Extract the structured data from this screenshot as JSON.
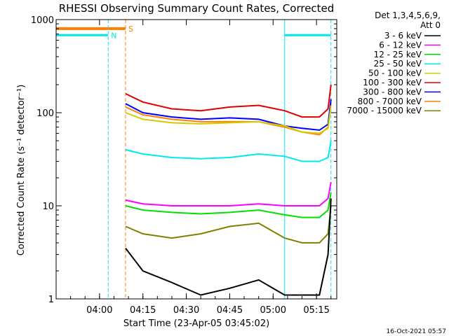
{
  "chart_data": {
    "type": "line",
    "title": "RHESSI Observing Summary Count Rates, Corrected",
    "xlabel": "Start Time (23-Apr-05 03:45:02)",
    "ylabel": "Corrected Count Rate (s⁻¹ detector⁻¹)",
    "yscale": "log",
    "ylim": [
      1,
      1000
    ],
    "xlim": [
      "03:45",
      "05:22"
    ],
    "x_ticks": [
      "04:00",
      "04:15",
      "04:30",
      "04:45",
      "05:00",
      "05:15"
    ],
    "y_ticks": [
      "1",
      "10",
      "100",
      "1000"
    ],
    "footer_timestamp": "16-Oct-2021 05:57",
    "legend": {
      "header_line1": "Det 1,3,4,5,6,9,",
      "header_line2": "Att 0",
      "placement": "top-right",
      "entries": [
        {
          "label": "3 - 6 keV",
          "color": "#000000"
        },
        {
          "label": "6 - 12 keV",
          "color": "#ff00ff"
        },
        {
          "label": "12 - 25 keV",
          "color": "#00e000"
        },
        {
          "label": "25 - 50 keV",
          "color": "#00e8f0"
        },
        {
          "label": "50 - 100 keV",
          "color": "#d8c800"
        },
        {
          "label": "100 - 300 keV",
          "color": "#e00000"
        },
        {
          "label": "300 - 800 keV",
          "color": "#0000ff"
        },
        {
          "label": "800 - 7000 keV",
          "color": "#ff8000"
        },
        {
          "label": "7000 - 15000 keV",
          "color": "#808000"
        }
      ]
    },
    "flags": [
      {
        "label": "N",
        "color": "#00e8f0",
        "segments": [
          [
            "03:45",
            "04:03"
          ],
          [
            "05:04",
            "05:20"
          ]
        ],
        "level": 680
      },
      {
        "label": "S",
        "color": "#ff8000",
        "segments": [
          [
            "03:45",
            "04:09"
          ]
        ],
        "level": 800
      }
    ],
    "markers": [
      {
        "time": "04:03",
        "color": "#00e8f0",
        "style": "dashed"
      },
      {
        "time": "04:09",
        "color": "#ff8000",
        "style": "dashed"
      },
      {
        "time": "05:04",
        "color": "#00e8f0",
        "style": "solid"
      },
      {
        "time": "05:20",
        "color": "#00e8f0",
        "style": "dashed"
      }
    ],
    "series": [
      {
        "label": "3 - 6 keV",
        "color": "#000000",
        "x": [
          "04:09",
          "04:15",
          "04:25",
          "04:35",
          "04:45",
          "04:55",
          "05:04",
          "05:10",
          "05:16",
          "05:19",
          "05:20"
        ],
        "y": [
          3.5,
          2.0,
          1.5,
          1.1,
          1.3,
          1.6,
          1.1,
          1.1,
          1.1,
          3.0,
          12.0
        ]
      },
      {
        "label": "6 - 12 keV",
        "color": "#ff00ff",
        "x": [
          "04:09",
          "04:15",
          "04:25",
          "04:35",
          "04:45",
          "04:55",
          "05:04",
          "05:10",
          "05:16",
          "05:19",
          "05:20"
        ],
        "y": [
          11.5,
          10.5,
          10.0,
          10.0,
          10.0,
          10.5,
          10.0,
          10.0,
          10.0,
          12.0,
          18.0
        ]
      },
      {
        "label": "12 - 25 keV",
        "color": "#00e000",
        "x": [
          "04:09",
          "04:15",
          "04:25",
          "04:35",
          "04:45",
          "04:55",
          "05:04",
          "05:10",
          "05:16",
          "05:19",
          "05:20"
        ],
        "y": [
          10.0,
          9.0,
          8.5,
          8.2,
          8.5,
          9.0,
          8.0,
          7.5,
          7.5,
          9.0,
          14.0
        ]
      },
      {
        "label": "25 - 50 keV",
        "color": "#00e8f0",
        "x": [
          "04:09",
          "04:15",
          "04:25",
          "04:35",
          "04:45",
          "04:55",
          "05:04",
          "05:10",
          "05:16",
          "05:19",
          "05:20"
        ],
        "y": [
          40.0,
          36.0,
          33.0,
          32.0,
          33.0,
          36.0,
          34.0,
          30.0,
          30.0,
          33.0,
          50.0
        ]
      },
      {
        "label": "50 - 100 keV",
        "color": "#d8c800",
        "x": [
          "04:09",
          "04:15",
          "04:25",
          "04:35",
          "04:45",
          "04:55",
          "05:04",
          "05:10",
          "05:16",
          "05:19",
          "05:20"
        ],
        "y": [
          100.0,
          85.0,
          78.0,
          76.0,
          78.0,
          80.0,
          72.0,
          62.0,
          60.0,
          68.0,
          120.0
        ]
      },
      {
        "label": "100 - 300 keV",
        "color": "#e00000",
        "x": [
          "04:09",
          "04:15",
          "04:25",
          "04:35",
          "04:45",
          "04:55",
          "05:04",
          "05:10",
          "05:16",
          "05:19",
          "05:20"
        ],
        "y": [
          160.0,
          130.0,
          110.0,
          105.0,
          115.0,
          120.0,
          105.0,
          90.0,
          90.0,
          110.0,
          200.0
        ]
      },
      {
        "label": "300 - 800 keV",
        "color": "#0000ff",
        "x": [
          "04:09",
          "04:15",
          "04:25",
          "04:35",
          "04:45",
          "04:55",
          "05:04",
          "05:10",
          "05:16",
          "05:19",
          "05:20"
        ],
        "y": [
          125.0,
          100.0,
          90.0,
          85.0,
          88.0,
          85.0,
          72.0,
          68.0,
          65.0,
          75.0,
          140.0
        ]
      },
      {
        "label": "800 - 7000 keV",
        "color": "#ff8000",
        "x": [
          "04:09",
          "04:15",
          "04:25",
          "04:35",
          "04:45",
          "04:55",
          "05:04",
          "05:10",
          "05:16",
          "05:19",
          "05:20"
        ],
        "y": [
          115.0,
          95.0,
          85.0,
          80.0,
          80.0,
          80.0,
          70.0,
          62.0,
          58.0,
          70.0,
          130.0
        ]
      },
      {
        "label": "7000 - 15000 keV",
        "color": "#808000",
        "x": [
          "04:09",
          "04:15",
          "04:25",
          "04:35",
          "04:45",
          "04:55",
          "05:04",
          "05:10",
          "05:16",
          "05:19",
          "05:20"
        ],
        "y": [
          6.0,
          5.0,
          4.5,
          5.0,
          6.0,
          6.5,
          4.5,
          4.0,
          4.0,
          5.0,
          10.0
        ]
      }
    ]
  }
}
